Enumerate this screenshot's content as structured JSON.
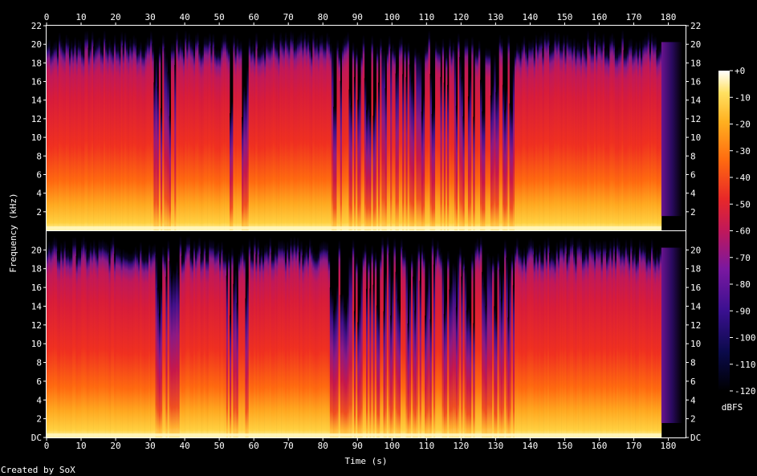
{
  "chart_data": {
    "type": "heatmap",
    "title": "",
    "xlabel": "Time (s)",
    "ylabel": "Frequency (kHz)",
    "xlim": [
      0,
      185
    ],
    "ylim": [
      0,
      22
    ],
    "x_ticks": [
      0,
      10,
      20,
      30,
      40,
      50,
      60,
      70,
      80,
      90,
      100,
      110,
      120,
      130,
      140,
      150,
      160,
      170,
      180
    ],
    "y_ticks_top": [
      "2",
      "4",
      "6",
      "8",
      "10",
      "12",
      "14",
      "16",
      "18",
      "20",
      "22"
    ],
    "y_ticks_bottom": [
      "DC",
      "2",
      "4",
      "6",
      "8",
      "10",
      "12",
      "14",
      "16",
      "18",
      "20"
    ],
    "colorbar": {
      "unit": "dBFS",
      "range": [
        -120,
        0
      ],
      "ticks": [
        "+0",
        "-10",
        "-20",
        "-30",
        "-40",
        "-50",
        "-60",
        "-70",
        "-80",
        "-90",
        "-100",
        "-110",
        "-120"
      ]
    },
    "channels": 2,
    "audio_end_s": 178,
    "footer": "Created by SoX"
  }
}
